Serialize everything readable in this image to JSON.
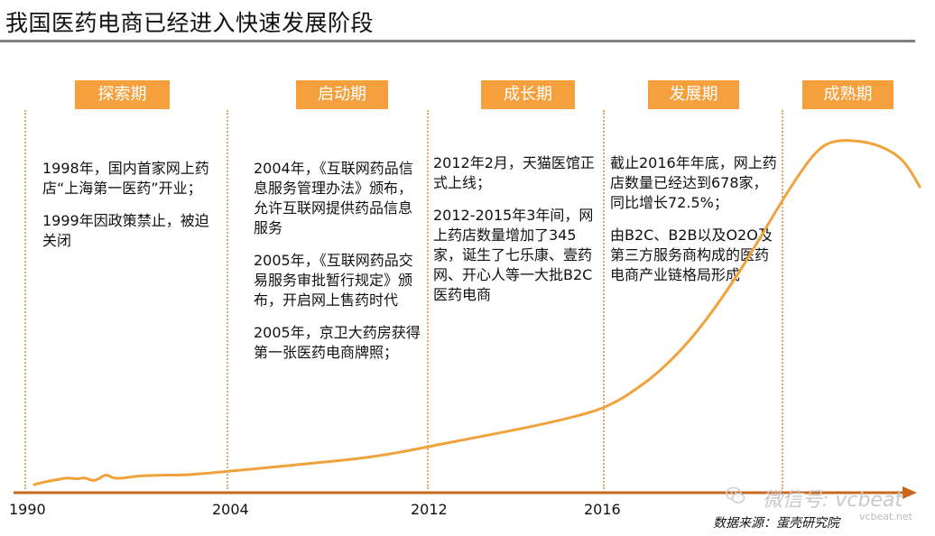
{
  "title": "我国医药电商已经进入快速发展阶段",
  "phases": [
    "探索期",
    "启动期",
    "成长期",
    "发展期",
    "成熟期"
  ],
  "years": [
    "1990",
    "2004",
    "2012",
    "2016"
  ],
  "columns": [
    {
      "paragraphs": [
        "1998年，国内首家网上药店“上海第一医药”开业；",
        "1999年因政策禁止，被迫关闭"
      ]
    },
    {
      "paragraphs": [
        "2004年，《互联网药品信息服务管理办法》颁布，允许互联网提供药品信息服务",
        "2005年，《互联网药品交易服务审批暂行规定》颁布，开启网上售药时代",
        "2005年，京卫大药房获得第一张医药电商牌照；"
      ]
    },
    {
      "paragraphs": [
        "2012年2月，天猫医馆正式上线；",
        "2012-2015年3年间，网上药店数量增加了345家，诞生了七乐康、壹药网、开心人等一大批B2C医药电商"
      ]
    },
    {
      "paragraphs": [
        "截止2016年年底，网上药店数量已经达到678家，同比增长72.5%；",
        "由B2C、B2B以及O2O及第三方服务商构成的医药电商产业链格局形成"
      ]
    }
  ],
  "source": "数据来源：蛋壳研究院",
  "watermark": "微信号: vcbeat",
  "watermark_domain": "vcbeat.net",
  "colors": {
    "accent": "#f5a03c",
    "curve": "#f0a23c",
    "axis": "#c8681e",
    "divider": "#e7a46b",
    "rule": "#7f7f7f"
  }
}
